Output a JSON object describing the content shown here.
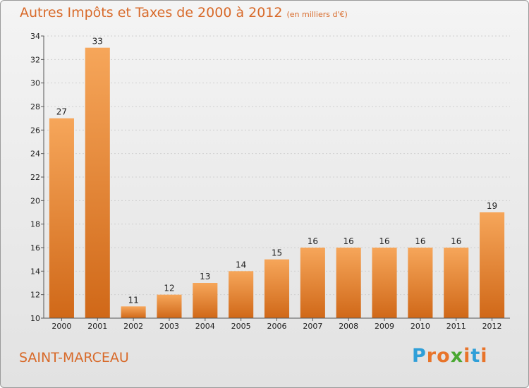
{
  "title": "Autres Impôts et Taxes de 2000 à 2012",
  "subtitle": "(en milliers d'€)",
  "commune": "SAINT-MARCEAU",
  "logo": {
    "text": "Proxiti",
    "letters": [
      "P",
      "r",
      "o",
      "x",
      "i",
      "t",
      "i"
    ],
    "colors": [
      "#2f9fd8",
      "#e8742a",
      "#e8742a",
      "#4aa832",
      "#e8742a",
      "#2f9fd8",
      "#e8742a"
    ]
  },
  "colors": {
    "accent": "#d86a2a",
    "bar_top": "#f6a65a",
    "bar_bottom": "#d06818",
    "grid": "#cfcfcf",
    "axis_text": "#222222"
  },
  "chart_data": {
    "type": "bar",
    "categories": [
      "2000",
      "2001",
      "2002",
      "2003",
      "2004",
      "2005",
      "2006",
      "2007",
      "2008",
      "2009",
      "2010",
      "2011",
      "2012"
    ],
    "values": [
      27,
      33,
      11,
      12,
      13,
      14,
      15,
      16,
      16,
      16,
      16,
      16,
      19
    ],
    "data_labels": [
      "27",
      "33",
      "11",
      "12",
      "13",
      "14",
      "15",
      "16",
      "16",
      "16",
      "16",
      "16",
      "19"
    ],
    "yticks": [
      "10",
      "12",
      "14",
      "16",
      "18",
      "20",
      "22",
      "24",
      "26",
      "28",
      "30",
      "32",
      "34"
    ],
    "ylim": [
      10,
      34
    ],
    "grid": true,
    "legend": false
  }
}
